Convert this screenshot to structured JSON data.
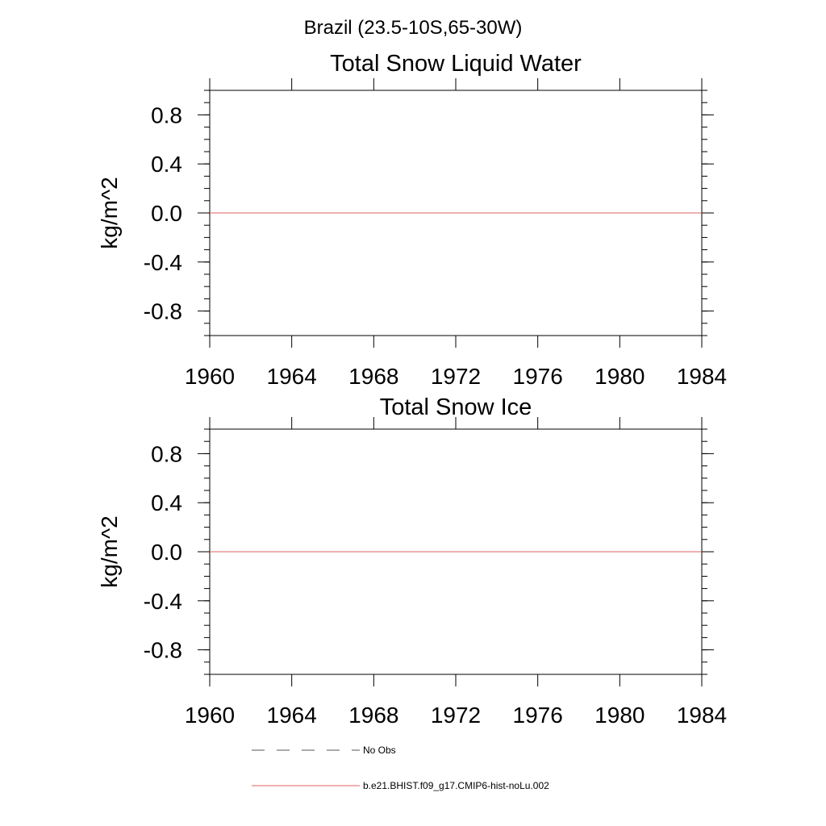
{
  "page_title": "Brazil (23.5-10S,65-30W)",
  "legend": [
    {
      "label": "No Obs",
      "color": "#555555",
      "dash": true
    },
    {
      "label": "b.e21.BHIST.f09_g17.CMIP6-hist-noLu.002",
      "color": "#e06060",
      "dash": false
    }
  ],
  "chart_data": [
    {
      "type": "line",
      "title": "Total Snow Liquid Water",
      "xlabel": "",
      "ylabel": "kg/m^2",
      "xlim": [
        1960,
        1984
      ],
      "ylim": [
        -1.0,
        1.0
      ],
      "xticks": [
        1960,
        1964,
        1968,
        1972,
        1976,
        1980,
        1984
      ],
      "yticks": [
        -0.8,
        -0.4,
        0.0,
        0.4,
        0.8
      ],
      "ytick_labels": [
        "-0.8",
        "-0.4",
        "0.0",
        "0.4",
        "0.8"
      ],
      "series": [
        {
          "name": "b.e21.BHIST.f09_g17.CMIP6-hist-noLu.002",
          "color": "#e06060",
          "x": [
            1960,
            1984
          ],
          "y": [
            0.0,
            0.0
          ]
        }
      ]
    },
    {
      "type": "line",
      "title": "Total Snow Ice",
      "xlabel": "",
      "ylabel": "kg/m^2",
      "xlim": [
        1960,
        1984
      ],
      "ylim": [
        -1.0,
        1.0
      ],
      "xticks": [
        1960,
        1964,
        1968,
        1972,
        1976,
        1980,
        1984
      ],
      "yticks": [
        -0.8,
        -0.4,
        0.0,
        0.4,
        0.8
      ],
      "ytick_labels": [
        "-0.8",
        "-0.4",
        "0.0",
        "0.4",
        "0.8"
      ],
      "series": [
        {
          "name": "b.e21.BHIST.f09_g17.CMIP6-hist-noLu.002",
          "color": "#e06060",
          "x": [
            1960,
            1984
          ],
          "y": [
            0.0,
            0.0
          ]
        }
      ]
    }
  ]
}
